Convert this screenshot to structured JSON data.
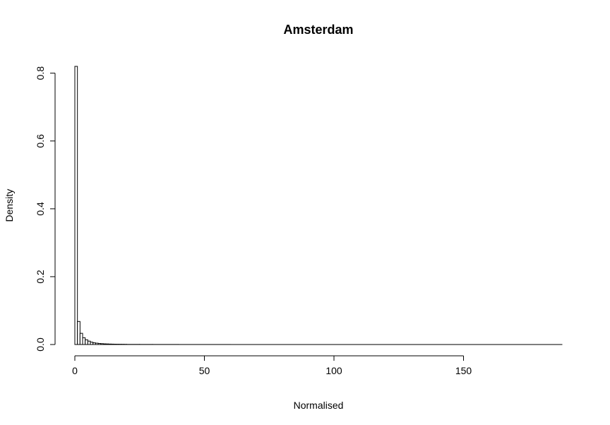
{
  "chart_data": {
    "type": "bar",
    "title": "Amsterdam",
    "xlabel": "Normalised",
    "ylabel": "Density",
    "xlim": [
      0,
      188
    ],
    "ylim": [
      0,
      0.82
    ],
    "bin_width": 1,
    "x_ticks": [
      0,
      50,
      100,
      150
    ],
    "y_ticks": [
      0.0,
      0.2,
      0.4,
      0.6,
      0.8
    ],
    "x_tick_labels": [
      "0",
      "50",
      "100",
      "150"
    ],
    "y_tick_labels": [
      "0.0",
      "0.2",
      "0.4",
      "0.6",
      "0.8"
    ],
    "bins": [
      {
        "x0": 0,
        "x1": 1,
        "density": 0.82
      },
      {
        "x0": 1,
        "x1": 2,
        "density": 0.068
      },
      {
        "x0": 2,
        "x1": 3,
        "density": 0.033
      },
      {
        "x0": 3,
        "x1": 4,
        "density": 0.02
      },
      {
        "x0": 4,
        "x1": 5,
        "density": 0.014
      },
      {
        "x0": 5,
        "x1": 6,
        "density": 0.01
      },
      {
        "x0": 6,
        "x1": 7,
        "density": 0.007
      },
      {
        "x0": 7,
        "x1": 8,
        "density": 0.005
      },
      {
        "x0": 8,
        "x1": 9,
        "density": 0.004
      },
      {
        "x0": 9,
        "x1": 10,
        "density": 0.003
      },
      {
        "x0": 10,
        "x1": 11,
        "density": 0.0025
      },
      {
        "x0": 11,
        "x1": 12,
        "density": 0.002
      },
      {
        "x0": 12,
        "x1": 13,
        "density": 0.0017
      },
      {
        "x0": 13,
        "x1": 14,
        "density": 0.0014
      },
      {
        "x0": 14,
        "x1": 15,
        "density": 0.0012
      },
      {
        "x0": 15,
        "x1": 16,
        "density": 0.001
      },
      {
        "x0": 16,
        "x1": 17,
        "density": 0.0009
      },
      {
        "x0": 17,
        "x1": 18,
        "density": 0.0008
      },
      {
        "x0": 18,
        "x1": 19,
        "density": 0.0007
      },
      {
        "x0": 19,
        "x1": 20,
        "density": 0.0006
      },
      {
        "x0": 20,
        "x1": 25,
        "density": 0.0004
      },
      {
        "x0": 25,
        "x1": 30,
        "density": 0.0003
      },
      {
        "x0": 30,
        "x1": 40,
        "density": 0.0002
      },
      {
        "x0": 40,
        "x1": 60,
        "density": 0.0001
      },
      {
        "x0": 60,
        "x1": 188,
        "density": 3e-05
      }
    ]
  }
}
